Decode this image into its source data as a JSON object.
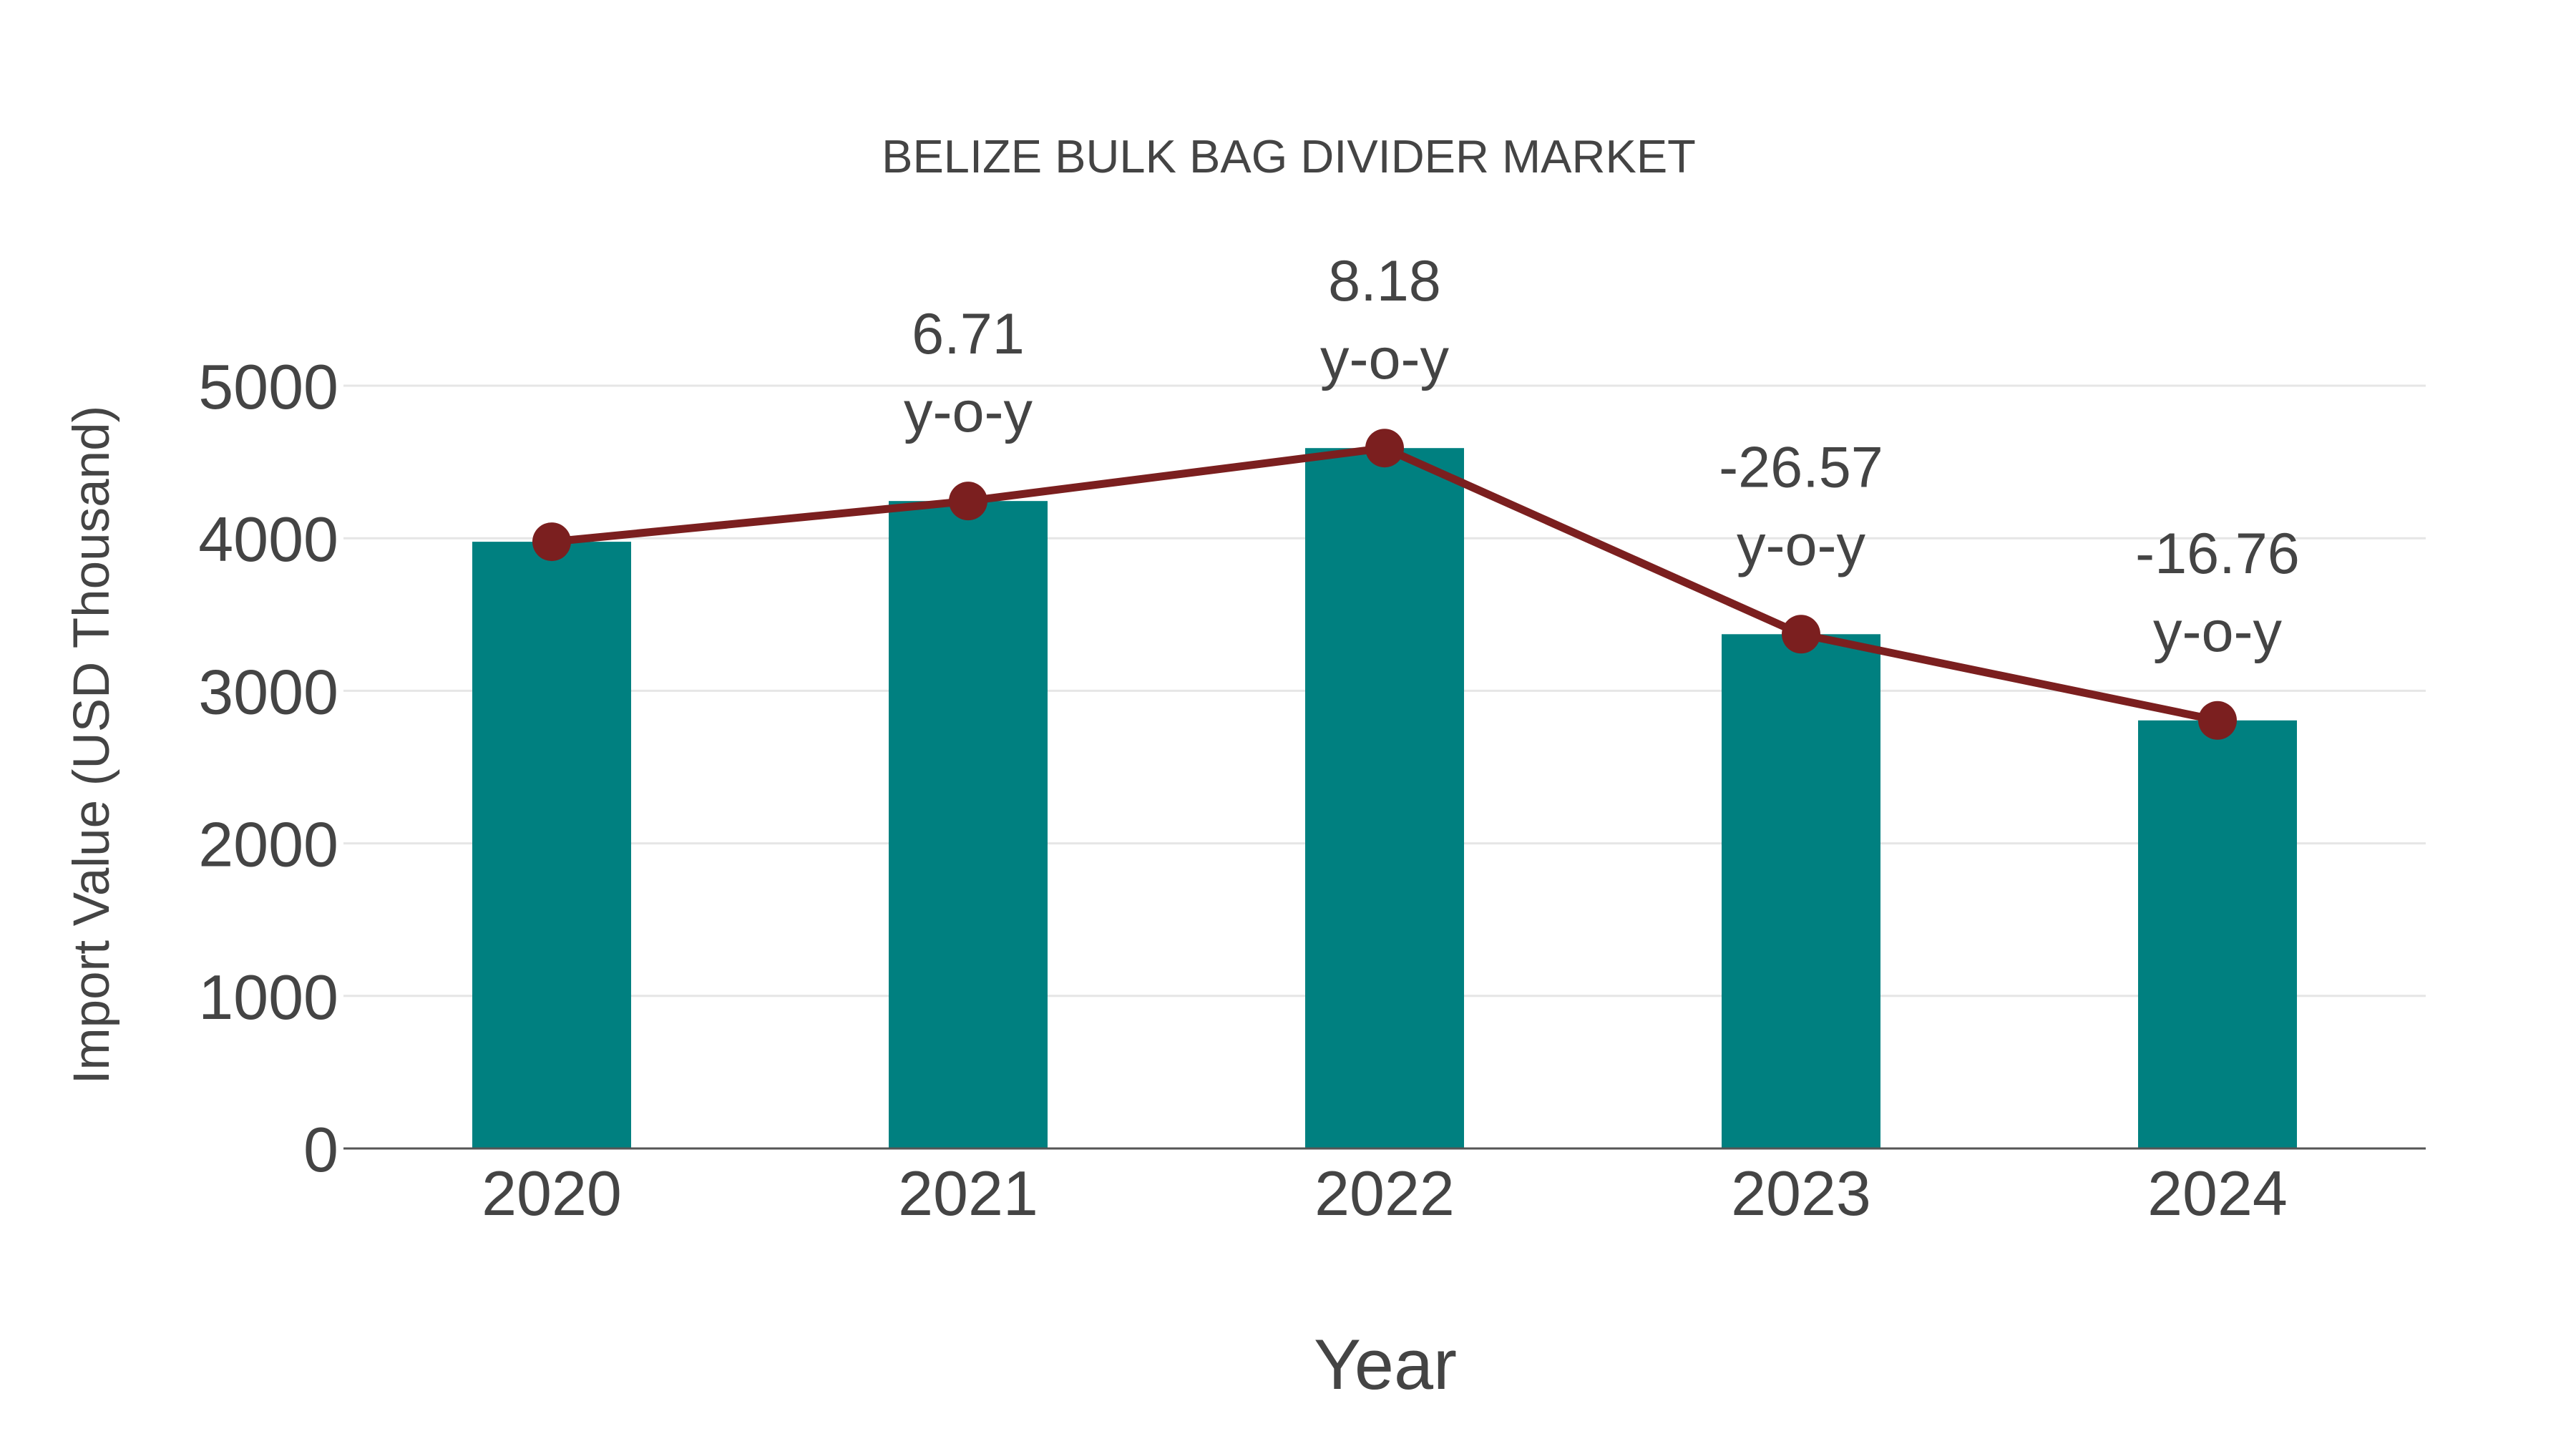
{
  "chart_data": {
    "type": "bar",
    "title": "BELIZE BULK BAG DIVIDER MARKET",
    "xlabel": "Year",
    "ylabel": "Import Value (USD Thousand)",
    "categories": [
      "2020",
      "2021",
      "2022",
      "2023",
      "2024"
    ],
    "series": [
      {
        "name": "Import Value",
        "type": "bar",
        "color": "#008080",
        "values": [
          3977,
          4244,
          4591,
          3371,
          2806
        ]
      },
      {
        "name": "Import Value trend",
        "type": "line",
        "color": "#7b1f1f",
        "values": [
          3977,
          4244,
          4591,
          3371,
          2806
        ]
      }
    ],
    "annotations": [
      {
        "category": "2021",
        "value": "6.71",
        "suffix": "y-o-y"
      },
      {
        "category": "2022",
        "value": "8.18",
        "suffix": "y-o-y"
      },
      {
        "category": "2023",
        "value": "-26.57",
        "suffix": "y-o-y"
      },
      {
        "category": "2024",
        "value": "-16.76",
        "suffix": "y-o-y"
      }
    ],
    "ylim": [
      0,
      5000
    ],
    "yticks": [
      "0",
      "1000",
      "2000",
      "3000",
      "4000",
      "5000"
    ],
    "grid": true,
    "legend": "none"
  },
  "colors": {
    "bar": "#008080",
    "line": "#7b1f1f",
    "text": "#444444",
    "grid": "#e6e6e6",
    "axis": "#555555"
  }
}
